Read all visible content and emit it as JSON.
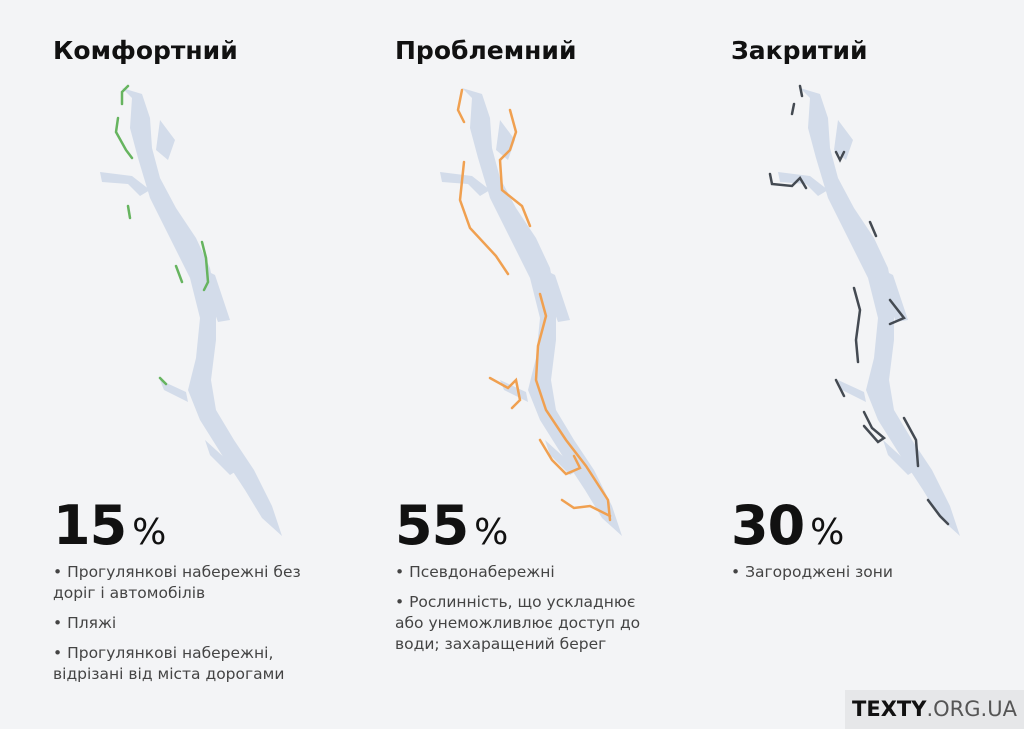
{
  "panels": [
    {
      "title": "Комфортний",
      "value": 15,
      "unit": "%",
      "notes": [
        "Прогулянкові набережні без доріг і автомобілів",
        "Пляжі",
        "Прогулянкові набережні, відрізані від міста дорогами"
      ]
    },
    {
      "title": "Проблемний",
      "value": 55,
      "unit": "%",
      "notes": [
        "Псевдонабережні",
        "Рослинність, що ускладнює або унеможливлює доступ до води; захаращений берег"
      ]
    },
    {
      "title": "Закритий",
      "value": 30,
      "unit": "%",
      "notes": [
        "Загороджені зони"
      ]
    }
  ],
  "brand": {
    "name": "TEXTY",
    "domain": ".ORG.UA"
  }
}
